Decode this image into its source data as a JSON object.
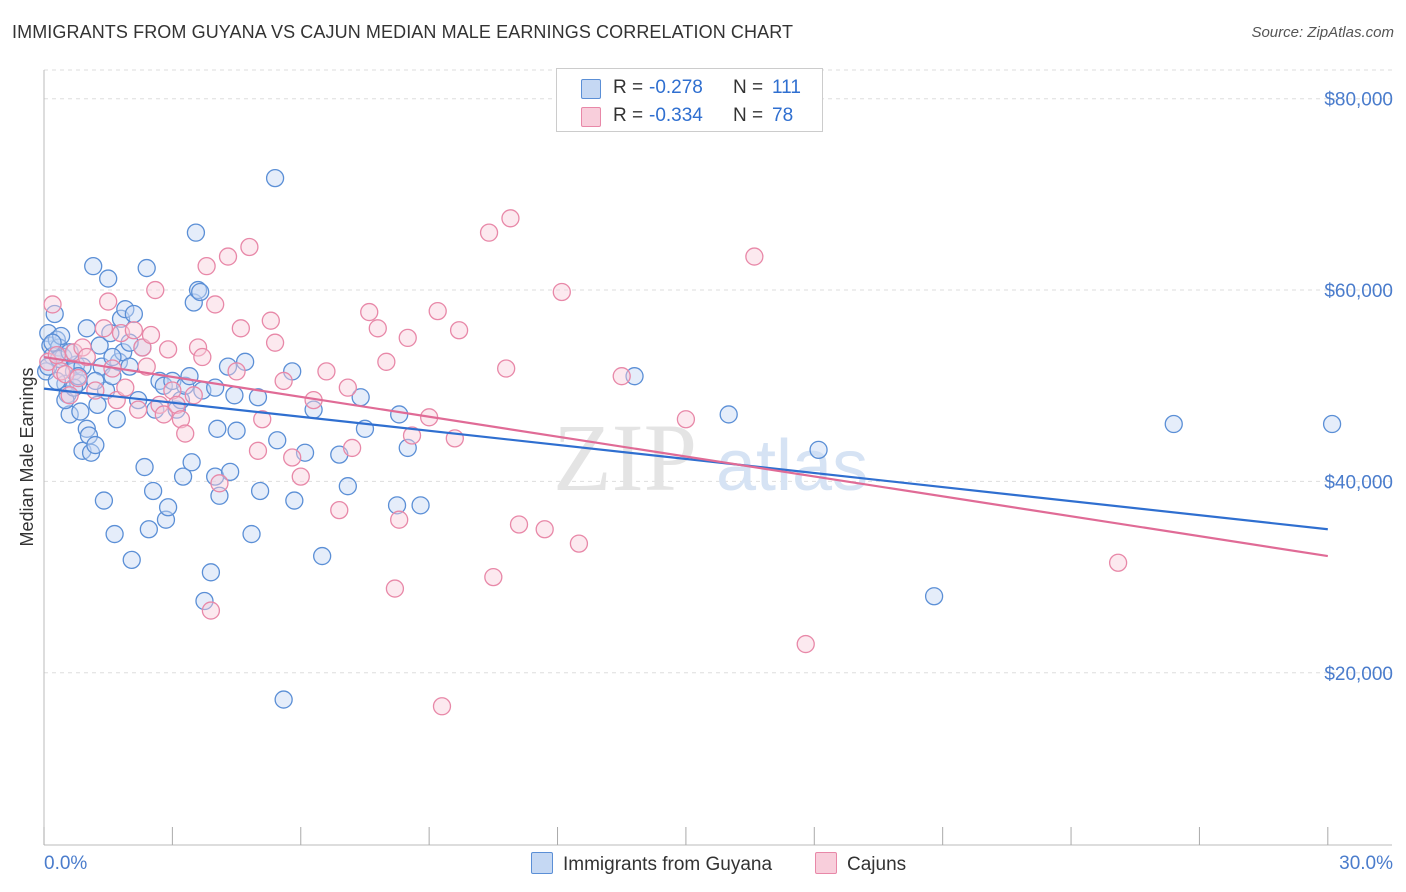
{
  "title": "IMMIGRANTS FROM GUYANA VS CAJUN MEDIAN MALE EARNINGS CORRELATION CHART",
  "source": "Source: ZipAtlas.com",
  "colors": {
    "blue": "#5b8fd6",
    "blue_fill": "#c5d8f3",
    "blue_line": "#2f6fd0",
    "pink": "#e888a8",
    "pink_fill": "#f8cedb",
    "pink_line": "#e06b96",
    "axis_text": "#4a7ccc",
    "grid": "#dddddd"
  },
  "legend": {
    "series": [
      {
        "r_label": "R =",
        "r_value": "-0.278",
        "n_label": "N =",
        "n_value": "111"
      },
      {
        "r_label": "R =",
        "r_value": "-0.334",
        "n_label": "N =",
        "n_value": "78"
      }
    ]
  },
  "bottom_legend": [
    "Immigrants from Guyana",
    "Cajuns"
  ],
  "watermark": {
    "zip": "ZIP",
    "atlas": "atlas"
  },
  "chart_data": {
    "type": "scatter",
    "title": "IMMIGRANTS FROM GUYANA VS CAJUN MEDIAN MALE EARNINGS CORRELATION CHART",
    "xlabel": "",
    "ylabel": "Median Male Earnings",
    "xlim": [
      0,
      31.5
    ],
    "ylim": [
      2000,
      83000
    ],
    "x_tick_labels": [
      "0.0%",
      "30.0%"
    ],
    "y_ticks": [
      20000,
      40000,
      60000,
      80000
    ],
    "y_tick_labels": [
      "$20,000",
      "$40,000",
      "$60,000",
      "$80,000"
    ],
    "x_minor_ticks": [
      0,
      3,
      6,
      9,
      12,
      15,
      18,
      21,
      24,
      27,
      30
    ],
    "grid": true,
    "series": [
      {
        "name": "Immigrants from Guyana",
        "r": -0.278,
        "n": 111,
        "trend": {
          "x": [
            0,
            30
          ],
          "y": [
            49700,
            35000
          ]
        },
        "points": [
          [
            0.1,
            55.5
          ],
          [
            0.15,
            54.2
          ],
          [
            0.2,
            53.1
          ],
          [
            0.25,
            57.5
          ],
          [
            0.3,
            54.8
          ],
          [
            0.35,
            54.0
          ],
          [
            0.4,
            55.2
          ],
          [
            0.45,
            53.0
          ],
          [
            0.5,
            50.2
          ],
          [
            0.55,
            49.1
          ],
          [
            0.6,
            47.0
          ],
          [
            0.7,
            51.5
          ],
          [
            0.75,
            52.2
          ],
          [
            0.8,
            50.3
          ],
          [
            0.85,
            47.3
          ],
          [
            0.9,
            43.2
          ],
          [
            1.0,
            45.5
          ],
          [
            1.05,
            44.8
          ],
          [
            1.1,
            43.0
          ],
          [
            1.15,
            62.5
          ],
          [
            1.2,
            43.8
          ],
          [
            1.25,
            48.0
          ],
          [
            1.3,
            54.2
          ],
          [
            1.35,
            52.0
          ],
          [
            1.4,
            38.0
          ],
          [
            1.45,
            49.5
          ],
          [
            1.5,
            61.2
          ],
          [
            1.55,
            55.5
          ],
          [
            1.6,
            51.0
          ],
          [
            1.65,
            34.5
          ],
          [
            1.7,
            46.5
          ],
          [
            1.75,
            52.5
          ],
          [
            1.8,
            57.0
          ],
          [
            1.85,
            53.5
          ],
          [
            1.9,
            58.0
          ],
          [
            2.0,
            52.0
          ],
          [
            2.05,
            31.8
          ],
          [
            2.1,
            57.5
          ],
          [
            2.2,
            48.5
          ],
          [
            2.3,
            54.0
          ],
          [
            2.35,
            41.5
          ],
          [
            2.4,
            62.3
          ],
          [
            2.45,
            35.0
          ],
          [
            2.55,
            39.0
          ],
          [
            2.7,
            50.5
          ],
          [
            2.8,
            50.0
          ],
          [
            2.85,
            36.0
          ],
          [
            2.9,
            37.3
          ],
          [
            3.0,
            50.5
          ],
          [
            3.1,
            47.5
          ],
          [
            3.2,
            48.5
          ],
          [
            3.25,
            40.5
          ],
          [
            3.3,
            50.0
          ],
          [
            3.45,
            42.0
          ],
          [
            3.5,
            58.7
          ],
          [
            3.55,
            66.0
          ],
          [
            3.6,
            60.0
          ],
          [
            3.65,
            59.8
          ],
          [
            3.7,
            49.5
          ],
          [
            3.75,
            27.5
          ],
          [
            3.9,
            30.5
          ],
          [
            4.0,
            40.5
          ],
          [
            4.05,
            45.5
          ],
          [
            4.1,
            38.5
          ],
          [
            4.3,
            52.0
          ],
          [
            4.35,
            41.0
          ],
          [
            4.45,
            49.0
          ],
          [
            4.5,
            45.3
          ],
          [
            4.7,
            52.5
          ],
          [
            4.85,
            34.5
          ],
          [
            5.0,
            48.8
          ],
          [
            5.05,
            39.0
          ],
          [
            5.4,
            71.7
          ],
          [
            5.45,
            44.3
          ],
          [
            5.6,
            17.2
          ],
          [
            5.8,
            51.5
          ],
          [
            5.85,
            38.0
          ],
          [
            6.1,
            43.0
          ],
          [
            6.3,
            47.5
          ],
          [
            6.5,
            32.2
          ],
          [
            6.9,
            42.8
          ],
          [
            7.1,
            39.5
          ],
          [
            7.4,
            48.8
          ],
          [
            7.5,
            45.5
          ],
          [
            8.25,
            37.5
          ],
          [
            8.3,
            47.0
          ],
          [
            8.5,
            43.5
          ],
          [
            8.8,
            37.5
          ],
          [
            13.8,
            51.0
          ],
          [
            16.0,
            47.0
          ],
          [
            18.1,
            43.3
          ],
          [
            20.8,
            28.0
          ],
          [
            26.4,
            46.0
          ],
          [
            30.1,
            46.0
          ],
          [
            0.05,
            51.5
          ],
          [
            0.1,
            52.0
          ],
          [
            0.2,
            54.5
          ],
          [
            0.3,
            50.5
          ],
          [
            0.35,
            52.8
          ],
          [
            0.5,
            48.5
          ],
          [
            0.6,
            53.5
          ],
          [
            0.7,
            49.8
          ],
          [
            0.9,
            52.0
          ],
          [
            1.0,
            56.0
          ],
          [
            1.2,
            50.5
          ],
          [
            1.6,
            53.0
          ],
          [
            2.0,
            54.5
          ],
          [
            2.6,
            47.5
          ],
          [
            3.4,
            51.0
          ],
          [
            4.0,
            49.8
          ],
          [
            0.8,
            51.0
          ]
        ]
      },
      {
        "name": "Cajuns",
        "r": -0.334,
        "n": 78,
        "trend": {
          "x": [
            0,
            30
          ],
          "y": [
            53000,
            32200
          ]
        },
        "points": [
          [
            0.1,
            52.5
          ],
          [
            0.2,
            58.5
          ],
          [
            0.3,
            53.2
          ],
          [
            0.4,
            51.5
          ],
          [
            0.5,
            51.2
          ],
          [
            0.6,
            49.0
          ],
          [
            0.7,
            53.5
          ],
          [
            0.8,
            50.8
          ],
          [
            0.9,
            54.0
          ],
          [
            1.0,
            53.0
          ],
          [
            1.2,
            49.5
          ],
          [
            1.4,
            56.0
          ],
          [
            1.5,
            58.8
          ],
          [
            1.6,
            51.8
          ],
          [
            1.7,
            48.5
          ],
          [
            1.8,
            55.5
          ],
          [
            1.9,
            49.8
          ],
          [
            2.1,
            55.8
          ],
          [
            2.2,
            47.5
          ],
          [
            2.3,
            54.0
          ],
          [
            2.4,
            52.0
          ],
          [
            2.5,
            55.3
          ],
          [
            2.6,
            60.0
          ],
          [
            2.7,
            48.0
          ],
          [
            2.8,
            47.0
          ],
          [
            2.9,
            53.8
          ],
          [
            3.0,
            49.5
          ],
          [
            3.1,
            48.0
          ],
          [
            3.2,
            46.5
          ],
          [
            3.3,
            45.0
          ],
          [
            3.5,
            49.0
          ],
          [
            3.6,
            54.0
          ],
          [
            3.7,
            53.0
          ],
          [
            3.8,
            62.5
          ],
          [
            3.9,
            26.5
          ],
          [
            4.0,
            58.5
          ],
          [
            4.1,
            39.8
          ],
          [
            4.3,
            63.5
          ],
          [
            4.5,
            51.5
          ],
          [
            4.6,
            56.0
          ],
          [
            4.8,
            64.5
          ],
          [
            5.0,
            43.2
          ],
          [
            5.1,
            46.5
          ],
          [
            5.3,
            56.8
          ],
          [
            5.4,
            54.5
          ],
          [
            5.6,
            50.5
          ],
          [
            5.8,
            42.5
          ],
          [
            6.0,
            40.5
          ],
          [
            6.3,
            48.5
          ],
          [
            6.6,
            51.5
          ],
          [
            6.9,
            37.0
          ],
          [
            7.1,
            49.8
          ],
          [
            7.2,
            43.5
          ],
          [
            7.6,
            57.7
          ],
          [
            7.8,
            56.0
          ],
          [
            8.0,
            52.5
          ],
          [
            8.3,
            36.0
          ],
          [
            8.5,
            55.0
          ],
          [
            8.6,
            44.8
          ],
          [
            9.0,
            46.7
          ],
          [
            9.2,
            57.8
          ],
          [
            9.3,
            16.5
          ],
          [
            9.6,
            44.5
          ],
          [
            9.7,
            55.8
          ],
          [
            10.4,
            66.0
          ],
          [
            10.5,
            30.0
          ],
          [
            10.8,
            51.8
          ],
          [
            10.9,
            67.5
          ],
          [
            11.1,
            35.5
          ],
          [
            11.7,
            35.0
          ],
          [
            12.1,
            59.8
          ],
          [
            12.5,
            33.5
          ],
          [
            13.5,
            51.0
          ],
          [
            15.0,
            46.5
          ],
          [
            16.6,
            63.5
          ],
          [
            17.8,
            23.0
          ],
          [
            25.1,
            31.5
          ],
          [
            8.2,
            28.8
          ]
        ]
      }
    ]
  }
}
